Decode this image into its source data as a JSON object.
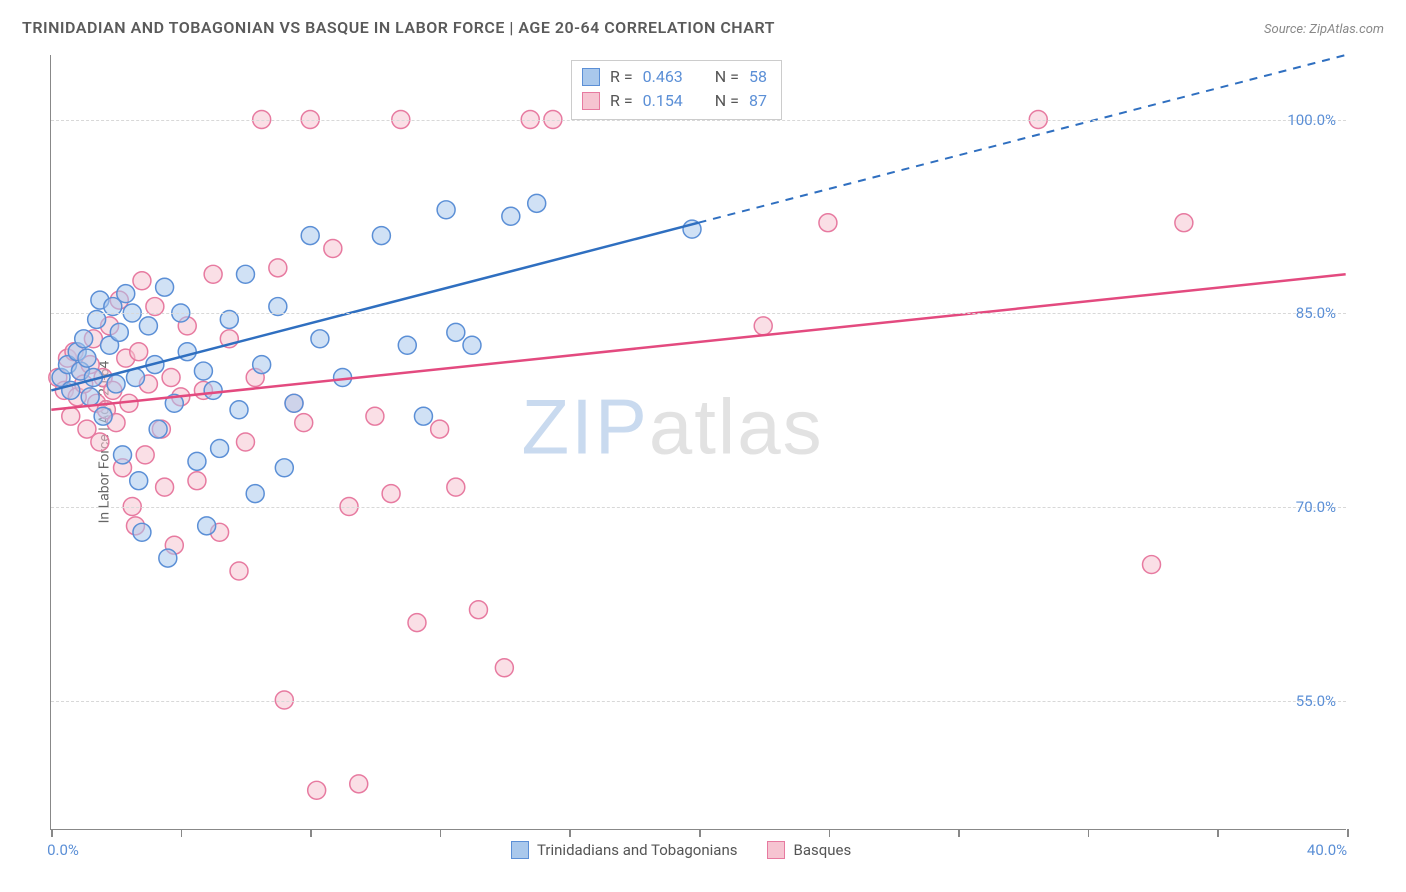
{
  "title": "TRINIDADIAN AND TOBAGONIAN VS BASQUE IN LABOR FORCE | AGE 20-64 CORRELATION CHART",
  "source": "Source: ZipAtlas.com",
  "ylabel": "In Labor Force | Age 20-64",
  "watermark_zip": "ZIP",
  "watermark_rest": "atlas",
  "chart": {
    "type": "scatter-correlation",
    "background_color": "#ffffff",
    "grid_color": "#d8d8d8",
    "axis_color": "#888888",
    "xlim": [
      0,
      40
    ],
    "ylim": [
      45,
      105
    ],
    "xticks": [
      {
        "v": 0,
        "label": "0.0%"
      },
      {
        "v": 20,
        "label": ""
      },
      {
        "v": 40,
        "label": "40.0%"
      }
    ],
    "xtick_marks": [
      0,
      4,
      8,
      12,
      16,
      20,
      24,
      28,
      32,
      36,
      40
    ],
    "yticks": [
      {
        "v": 55,
        "label": "55.0%"
      },
      {
        "v": 70,
        "label": "70.0%"
      },
      {
        "v": 85,
        "label": "85.0%"
      },
      {
        "v": 100,
        "label": "100.0%"
      }
    ],
    "marker_radius": 9,
    "marker_opacity": 0.55,
    "line_width": 2.5,
    "series": [
      {
        "name": "Trinidadians and Tobagonians",
        "fill_color": "#a9c8ec",
        "stroke_color": "#5b8fd6",
        "line_color": "#2f6fc0",
        "R": "0.463",
        "N": "58",
        "regression": {
          "x1": 0,
          "y1": 79,
          "x2": 40,
          "y2": 105,
          "solid_x2": 20,
          "solid_y2": 92
        },
        "points": [
          [
            0.3,
            80
          ],
          [
            0.5,
            81
          ],
          [
            0.6,
            79
          ],
          [
            0.8,
            82
          ],
          [
            0.9,
            80.5
          ],
          [
            1.0,
            83
          ],
          [
            1.1,
            81.5
          ],
          [
            1.2,
            78.5
          ],
          [
            1.3,
            80
          ],
          [
            1.4,
            84.5
          ],
          [
            1.5,
            86
          ],
          [
            1.6,
            77
          ],
          [
            1.8,
            82.5
          ],
          [
            1.9,
            85.5
          ],
          [
            2.0,
            79.5
          ],
          [
            2.1,
            83.5
          ],
          [
            2.2,
            74
          ],
          [
            2.3,
            86.5
          ],
          [
            2.5,
            85
          ],
          [
            2.6,
            80
          ],
          [
            2.7,
            72
          ],
          [
            2.8,
            68
          ],
          [
            3.0,
            84
          ],
          [
            3.2,
            81
          ],
          [
            3.3,
            76
          ],
          [
            3.5,
            87
          ],
          [
            3.6,
            66
          ],
          [
            3.8,
            78
          ],
          [
            4.0,
            85
          ],
          [
            4.2,
            82
          ],
          [
            4.5,
            73.5
          ],
          [
            4.7,
            80.5
          ],
          [
            4.8,
            68.5
          ],
          [
            5.0,
            79
          ],
          [
            5.2,
            74.5
          ],
          [
            5.5,
            84.5
          ],
          [
            5.8,
            77.5
          ],
          [
            6.0,
            88
          ],
          [
            6.3,
            71
          ],
          [
            6.5,
            81
          ],
          [
            7.0,
            85.5
          ],
          [
            7.2,
            73
          ],
          [
            7.5,
            78
          ],
          [
            8.0,
            91
          ],
          [
            8.3,
            83
          ],
          [
            9.0,
            80
          ],
          [
            10.2,
            91
          ],
          [
            11.0,
            82.5
          ],
          [
            11.5,
            77
          ],
          [
            12.2,
            93
          ],
          [
            12.5,
            83.5
          ],
          [
            13.0,
            82.5
          ],
          [
            14.2,
            92.5
          ],
          [
            15.0,
            93.5
          ],
          [
            19.8,
            91.5
          ]
        ]
      },
      {
        "name": "Basques",
        "fill_color": "#f6c4d1",
        "stroke_color": "#e77aa0",
        "line_color": "#e34a7f",
        "R": "0.154",
        "N": "87",
        "regression": {
          "x1": 0,
          "y1": 77.5,
          "x2": 40,
          "y2": 88,
          "solid_x2": 40,
          "solid_y2": 88
        },
        "points": [
          [
            0.2,
            80
          ],
          [
            0.4,
            79
          ],
          [
            0.5,
            81.5
          ],
          [
            0.6,
            77
          ],
          [
            0.7,
            82
          ],
          [
            0.8,
            78.5
          ],
          [
            0.9,
            80.5
          ],
          [
            1.0,
            79.5
          ],
          [
            1.1,
            76
          ],
          [
            1.2,
            81
          ],
          [
            1.3,
            83
          ],
          [
            1.4,
            78
          ],
          [
            1.5,
            75
          ],
          [
            1.6,
            80
          ],
          [
            1.7,
            77.5
          ],
          [
            1.8,
            84
          ],
          [
            1.9,
            79
          ],
          [
            2.0,
            76.5
          ],
          [
            2.1,
            86
          ],
          [
            2.2,
            73
          ],
          [
            2.3,
            81.5
          ],
          [
            2.4,
            78
          ],
          [
            2.5,
            70
          ],
          [
            2.6,
            68.5
          ],
          [
            2.7,
            82
          ],
          [
            2.8,
            87.5
          ],
          [
            2.9,
            74
          ],
          [
            3.0,
            79.5
          ],
          [
            3.2,
            85.5
          ],
          [
            3.4,
            76
          ],
          [
            3.5,
            71.5
          ],
          [
            3.7,
            80
          ],
          [
            3.8,
            67
          ],
          [
            4.0,
            78.5
          ],
          [
            4.2,
            84
          ],
          [
            4.5,
            72
          ],
          [
            4.7,
            79
          ],
          [
            5.0,
            88
          ],
          [
            5.2,
            68
          ],
          [
            5.5,
            83
          ],
          [
            5.8,
            65
          ],
          [
            6.0,
            75
          ],
          [
            6.3,
            80
          ],
          [
            6.5,
            100
          ],
          [
            7.0,
            88.5
          ],
          [
            7.2,
            55
          ],
          [
            7.5,
            78
          ],
          [
            7.8,
            76.5
          ],
          [
            8.0,
            100
          ],
          [
            8.2,
            48
          ],
          [
            8.7,
            90
          ],
          [
            9.2,
            70
          ],
          [
            9.5,
            48.5
          ],
          [
            10.0,
            77
          ],
          [
            10.5,
            71
          ],
          [
            10.8,
            100
          ],
          [
            11.3,
            61
          ],
          [
            12.0,
            76
          ],
          [
            12.5,
            71.5
          ],
          [
            13.2,
            62
          ],
          [
            14.0,
            57.5
          ],
          [
            14.8,
            100
          ],
          [
            15.5,
            100
          ],
          [
            22.0,
            84
          ],
          [
            24.0,
            92
          ],
          [
            30.5,
            100
          ],
          [
            34.0,
            65.5
          ],
          [
            35.0,
            92
          ]
        ]
      }
    ]
  },
  "stats_labels": {
    "R": "R",
    "eq": " = ",
    "N": "N"
  }
}
